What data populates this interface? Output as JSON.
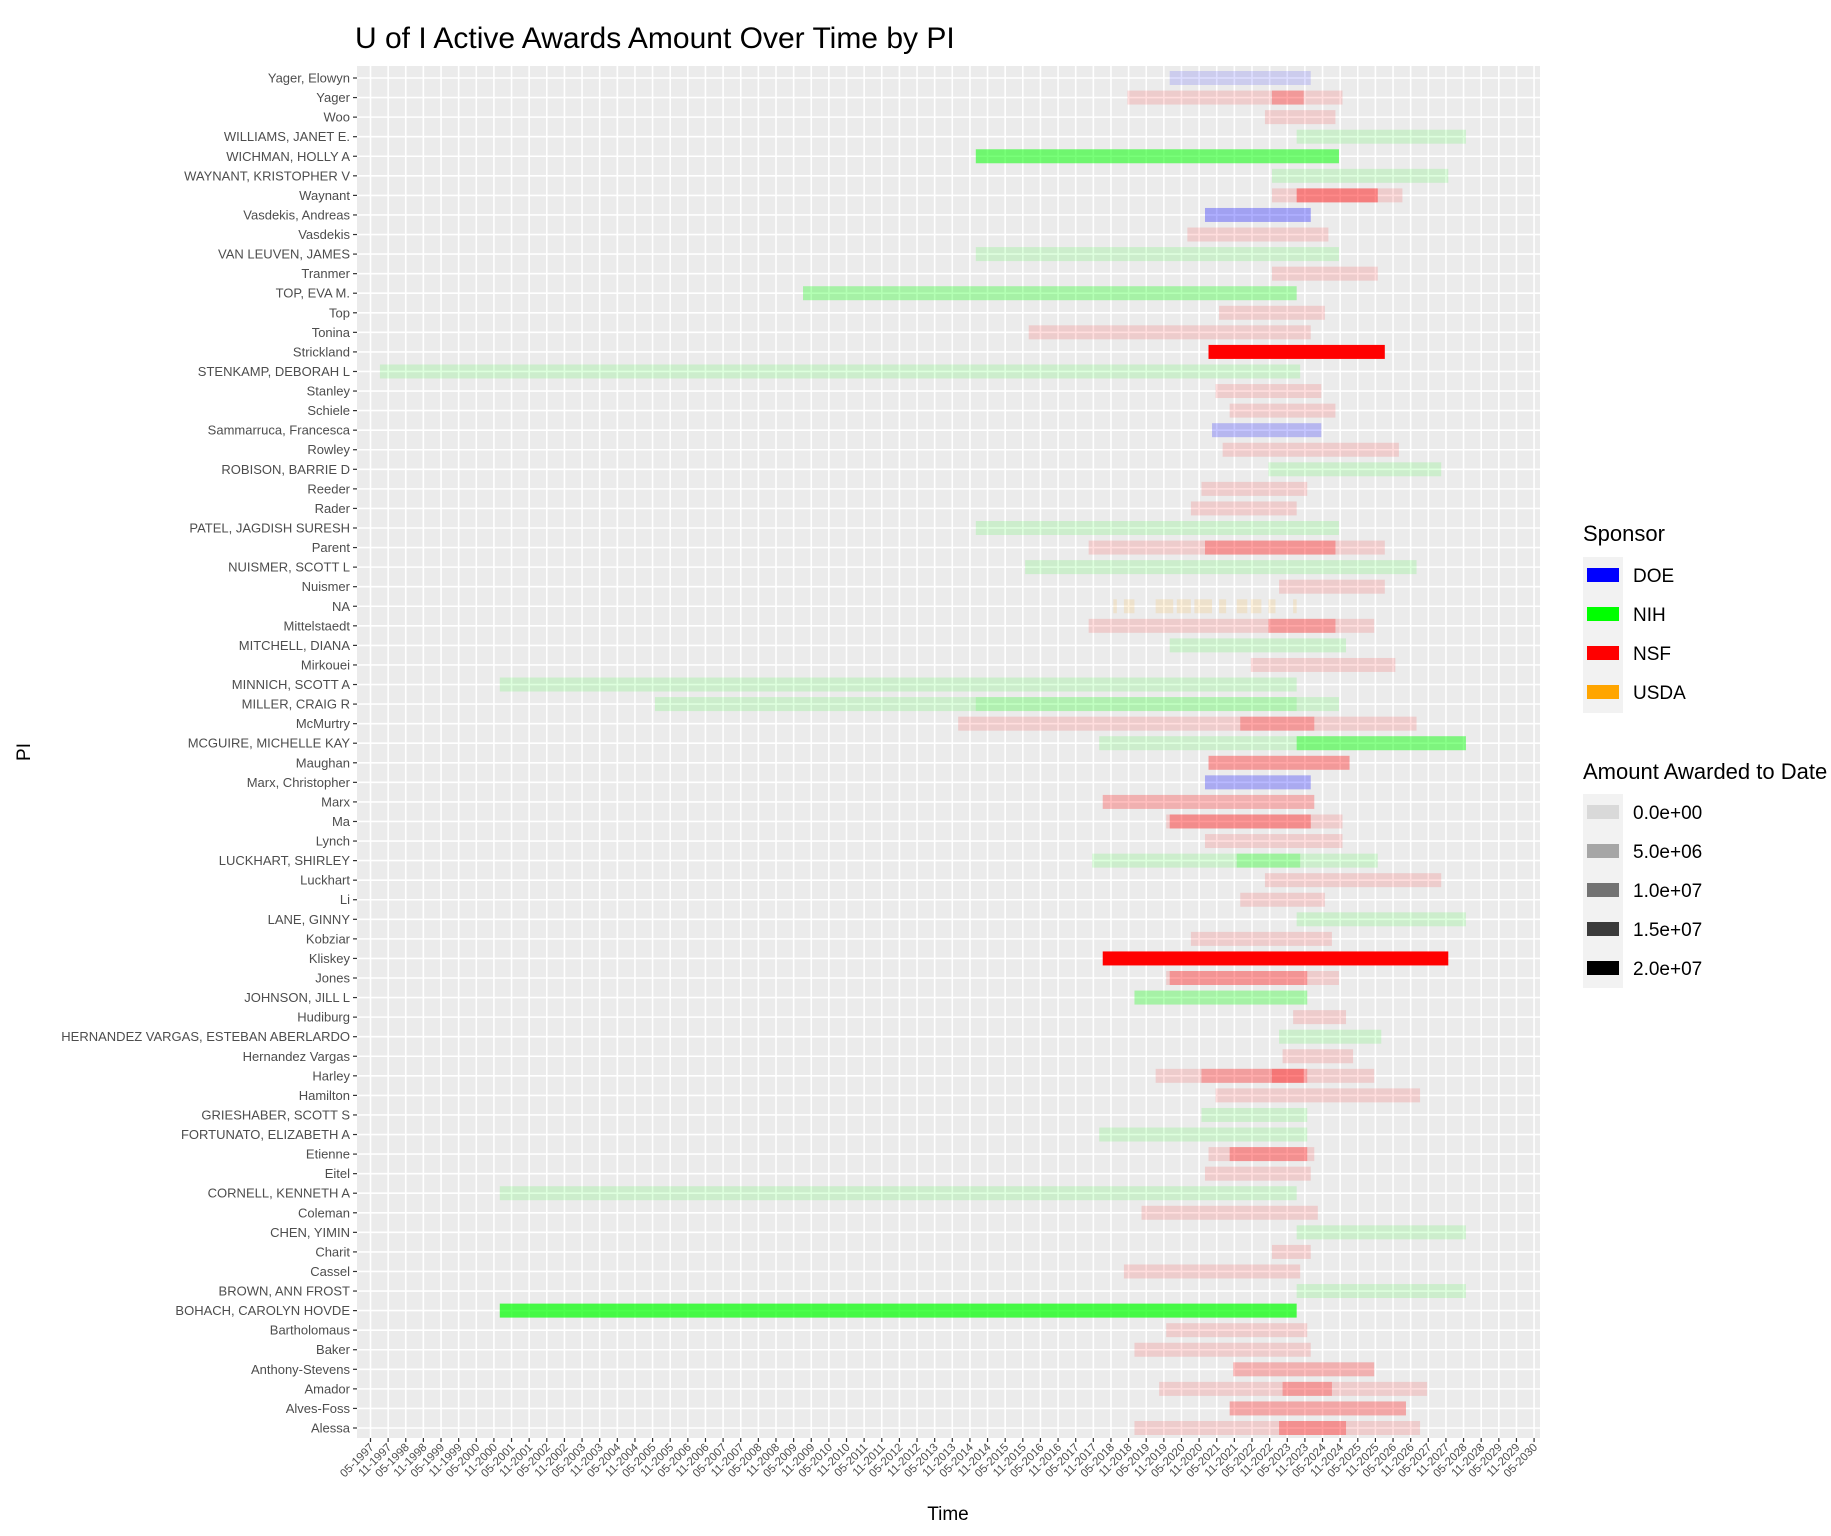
{
  "chart_data": {
    "type": "gantt",
    "title": "U of I Active Awards Amount Over Time by PI",
    "xlabel": "Time",
    "ylabel": "PI",
    "x_ticks": [
      "05-1997",
      "11-1997",
      "05-1998",
      "11-1998",
      "05-1999",
      "11-1999",
      "05-2000",
      "11-2000",
      "05-2001",
      "11-2001",
      "05-2002",
      "11-2002",
      "05-2003",
      "11-2003",
      "05-2004",
      "11-2004",
      "05-2005",
      "11-2005",
      "05-2006",
      "11-2006",
      "05-2007",
      "11-2007",
      "05-2008",
      "11-2008",
      "05-2009",
      "11-2009",
      "05-2010",
      "11-2010",
      "05-2011",
      "11-2011",
      "05-2012",
      "11-2012",
      "05-2013",
      "11-2013",
      "05-2014",
      "11-2014",
      "05-2015",
      "11-2015",
      "05-2016",
      "11-2016",
      "05-2017",
      "11-2017",
      "05-2018",
      "11-2018",
      "05-2019",
      "11-2019",
      "05-2020",
      "11-2020",
      "05-2021",
      "11-2021",
      "05-2022",
      "11-2022",
      "05-2023",
      "11-2023",
      "05-2024",
      "11-2024",
      "05-2025",
      "11-2025",
      "05-2026",
      "11-2026",
      "05-2027",
      "11-2027",
      "05-2028",
      "11-2028",
      "05-2029",
      "11-2029",
      "05-2030"
    ],
    "pi_categories": [
      "Yager, Elowyn",
      "Yager",
      "Woo",
      "WILLIAMS, JANET E.",
      "WICHMAN, HOLLY A",
      "WAYNANT, KRISTOPHER V",
      "Waynant",
      "Vasdekis, Andreas",
      "Vasdekis",
      "VAN LEUVEN, JAMES ",
      "Tranmer",
      "TOP, EVA M.",
      "Top",
      "Tonina",
      "Strickland",
      "STENKAMP, DEBORAH L",
      "Stanley",
      "Schiele",
      "Sammarruca, Francesca",
      "Rowley",
      "ROBISON, BARRIE D",
      "Reeder",
      "Rader",
      "PATEL, JAGDISH SURESH ",
      "Parent",
      "NUISMER, SCOTT L",
      "Nuismer",
      "NA",
      "Mittelstaedt",
      "MITCHELL, DIANA ",
      "Mirkouei",
      "MINNICH, SCOTT A",
      "MILLER, CRAIG R",
      "McMurtry",
      "MCGUIRE, MICHELLE KAY",
      "Maughan",
      "Marx, Christopher",
      "Marx",
      "Ma",
      "Lynch",
      "LUCKHART, SHIRLEY ",
      "Luckhart",
      "Li",
      "LANE, GINNY ",
      "Kobziar",
      "Kliskey",
      "Jones",
      "JOHNSON, JILL L",
      "Hudiburg",
      "HERNANDEZ VARGAS, ESTEBAN ABERLARDO",
      "Hernandez Vargas",
      "Harley",
      "Hamilton",
      "GRIESHABER, SCOTT S",
      "FORTUNATO, ELIZABETH A",
      "Etienne",
      "Eitel",
      "CORNELL, KENNETH A",
      "Coleman",
      "CHEN, YIMIN ",
      "Charit",
      "Cassel",
      "BROWN, ANN FROST",
      "BOHACH, CAROLYN HOVDE",
      "Bartholomaus",
      "Baker",
      "Anthony-Stevens",
      "Amador",
      "Alves-Foss",
      "Alessa"
    ],
    "sponsor_colors": {
      "DOE": "#0000ff",
      "NIH": "#00ff00",
      "NSF": "#ff0000",
      "USDA": "#ffa500"
    },
    "amount_range": [
      0,
      20000000
    ],
    "bars": [
      {
        "pi": "Yager, Elowyn",
        "s": "DOE",
        "start": 2020.0,
        "end": 2024.0,
        "amt": 0
      },
      {
        "pi": "Yager",
        "s": "NSF",
        "start": 2018.8,
        "end": 2024.9,
        "amt": 0
      },
      {
        "pi": "Yager",
        "s": "NSF",
        "start": 2022.9,
        "end": 2023.8,
        "amt": 300000
      },
      {
        "pi": "Woo",
        "s": "NSF",
        "start": 2022.7,
        "end": 2024.7,
        "amt": 0
      },
      {
        "pi": "WILLIAMS, JANET E.",
        "s": "NIH",
        "start": 2023.6,
        "end": 2028.4,
        "amt": 0
      },
      {
        "pi": "WICHMAN, HOLLY A",
        "s": "NIH",
        "start": 2014.5,
        "end": 2024.8,
        "amt": 2200000
      },
      {
        "pi": "WAYNANT, KRISTOPHER V",
        "s": "NIH",
        "start": 2022.9,
        "end": 2027.9,
        "amt": 0
      },
      {
        "pi": "Waynant",
        "s": "NSF",
        "start": 2022.9,
        "end": 2026.6,
        "amt": 0
      },
      {
        "pi": "Waynant",
        "s": "NSF",
        "start": 2023.6,
        "end": 2025.9,
        "amt": 1000000
      },
      {
        "pi": "Vasdekis, Andreas",
        "s": "DOE",
        "start": 2021.0,
        "end": 2024.0,
        "amt": 600000
      },
      {
        "pi": "Vasdekis",
        "s": "NSF",
        "start": 2020.5,
        "end": 2024.5,
        "amt": 0
      },
      {
        "pi": "VAN LEUVEN, JAMES ",
        "s": "NIH",
        "start": 2014.5,
        "end": 2024.8,
        "amt": 0
      },
      {
        "pi": "Tranmer",
        "s": "NSF",
        "start": 2022.9,
        "end": 2025.9,
        "amt": 0
      },
      {
        "pi": "TOP, EVA M.",
        "s": "NIH",
        "start": 2009.6,
        "end": 2023.6,
        "amt": 500000
      },
      {
        "pi": "Top",
        "s": "NSF",
        "start": 2021.4,
        "end": 2024.4,
        "amt": 0
      },
      {
        "pi": "Tonina",
        "s": "NSF",
        "start": 2016.0,
        "end": 2024.0,
        "amt": 0
      },
      {
        "pi": "Strickland",
        "s": "NSF",
        "start": 2021.1,
        "end": 2026.1,
        "amt": 8000000
      },
      {
        "pi": "STENKAMP, DEBORAH L",
        "s": "NIH",
        "start": 1997.6,
        "end": 2023.7,
        "amt": 0
      },
      {
        "pi": "Stanley",
        "s": "NSF",
        "start": 2021.3,
        "end": 2024.3,
        "amt": 0
      },
      {
        "pi": "Schiele",
        "s": "NSF",
        "start": 2021.7,
        "end": 2024.7,
        "amt": 0
      },
      {
        "pi": "Sammarruca, Francesca",
        "s": "DOE",
        "start": 2021.2,
        "end": 2024.3,
        "amt": 200000
      },
      {
        "pi": "Rowley",
        "s": "NSF",
        "start": 2021.5,
        "end": 2026.5,
        "amt": 0
      },
      {
        "pi": "ROBISON, BARRIE D",
        "s": "NIH",
        "start": 2022.8,
        "end": 2027.7,
        "amt": 0
      },
      {
        "pi": "Reeder",
        "s": "NSF",
        "start": 2020.9,
        "end": 2023.9,
        "amt": 0
      },
      {
        "pi": "Rader",
        "s": "NSF",
        "start": 2020.6,
        "end": 2023.6,
        "amt": 0
      },
      {
        "pi": "PATEL, JAGDISH SURESH ",
        "s": "NIH",
        "start": 2014.5,
        "end": 2024.8,
        "amt": 0
      },
      {
        "pi": "Parent",
        "s": "NSF",
        "start": 2017.7,
        "end": 2026.1,
        "amt": 0
      },
      {
        "pi": "Parent",
        "s": "NSF",
        "start": 2021.0,
        "end": 2024.7,
        "amt": 400000
      },
      {
        "pi": "NUISMER, SCOTT L",
        "s": "NIH",
        "start": 2015.9,
        "end": 2027.0,
        "amt": 0
      },
      {
        "pi": "Nuismer",
        "s": "NSF",
        "start": 2023.1,
        "end": 2026.1,
        "amt": 0
      },
      {
        "pi": "NA",
        "s": "USDA",
        "start": 2018.4,
        "end": 2018.5,
        "amt": 0
      },
      {
        "pi": "NA",
        "s": "USDA",
        "start": 2018.7,
        "end": 2019.0,
        "amt": 0
      },
      {
        "pi": "NA",
        "s": "USDA",
        "start": 2019.6,
        "end": 2020.1,
        "amt": 0
      },
      {
        "pi": "NA",
        "s": "USDA",
        "start": 2020.2,
        "end": 2020.6,
        "amt": 0
      },
      {
        "pi": "NA",
        "s": "USDA",
        "start": 2020.7,
        "end": 2021.2,
        "amt": 0
      },
      {
        "pi": "NA",
        "s": "USDA",
        "start": 2021.4,
        "end": 2021.6,
        "amt": 0
      },
      {
        "pi": "NA",
        "s": "USDA",
        "start": 2021.9,
        "end": 2022.2,
        "amt": 0
      },
      {
        "pi": "NA",
        "s": "USDA",
        "start": 2022.3,
        "end": 2022.6,
        "amt": 0
      },
      {
        "pi": "NA",
        "s": "USDA",
        "start": 2022.8,
        "end": 2023.0,
        "amt": 0
      },
      {
        "pi": "NA",
        "s": "USDA",
        "start": 2023.5,
        "end": 2023.6,
        "amt": 0
      },
      {
        "pi": "Mittelstaedt",
        "s": "NSF",
        "start": 2017.7,
        "end": 2025.8,
        "amt": 0
      },
      {
        "pi": "Mittelstaedt",
        "s": "NSF",
        "start": 2022.8,
        "end": 2024.7,
        "amt": 300000
      },
      {
        "pi": "MITCHELL, DIANA ",
        "s": "NIH",
        "start": 2020.0,
        "end": 2025.0,
        "amt": 0
      },
      {
        "pi": "Mirkouei",
        "s": "NSF",
        "start": 2022.3,
        "end": 2026.4,
        "amt": 0
      },
      {
        "pi": "MINNICH, SCOTT A",
        "s": "NIH",
        "start": 2001.0,
        "end": 2023.6,
        "amt": 0
      },
      {
        "pi": "MILLER, CRAIG R",
        "s": "NIH",
        "start": 2005.4,
        "end": 2024.8,
        "amt": 0
      },
      {
        "pi": "MILLER, CRAIG R",
        "s": "NIH",
        "start": 2014.5,
        "end": 2023.6,
        "amt": 0
      },
      {
        "pi": "McMurtry",
        "s": "NSF",
        "start": 2014.0,
        "end": 2027.0,
        "amt": 0
      },
      {
        "pi": "McMurtry",
        "s": "NSF",
        "start": 2022.0,
        "end": 2024.1,
        "amt": 300000
      },
      {
        "pi": "MCGUIRE, MICHELLE KAY",
        "s": "NIH",
        "start": 2018.0,
        "end": 2028.4,
        "amt": 0
      },
      {
        "pi": "MCGUIRE, MICHELLE KAY",
        "s": "NIH",
        "start": 2023.6,
        "end": 2028.4,
        "amt": 1000000
      },
      {
        "pi": "Maughan",
        "s": "NSF",
        "start": 2021.1,
        "end": 2025.1,
        "amt": 800000
      },
      {
        "pi": "Marx, Christopher",
        "s": "DOE",
        "start": 2021.0,
        "end": 2024.0,
        "amt": 400000
      },
      {
        "pi": "Marx",
        "s": "NSF",
        "start": 2018.1,
        "end": 2024.1,
        "amt": 300000
      },
      {
        "pi": "Ma",
        "s": "NSF",
        "start": 2019.9,
        "end": 2024.9,
        "amt": 0
      },
      {
        "pi": "Ma",
        "s": "NSF",
        "start": 2020.0,
        "end": 2024.0,
        "amt": 600000
      },
      {
        "pi": "Lynch",
        "s": "NSF",
        "start": 2021.0,
        "end": 2024.9,
        "amt": 0
      },
      {
        "pi": "LUCKHART, SHIRLEY ",
        "s": "NIH",
        "start": 2017.8,
        "end": 2025.9,
        "amt": 0
      },
      {
        "pi": "LUCKHART, SHIRLEY ",
        "s": "NIH",
        "start": 2021.9,
        "end": 2023.7,
        "amt": 200000
      },
      {
        "pi": "Luckhart",
        "s": "NSF",
        "start": 2022.7,
        "end": 2027.7,
        "amt": 0
      },
      {
        "pi": "Li",
        "s": "NSF",
        "start": 2022.0,
        "end": 2024.4,
        "amt": 0
      },
      {
        "pi": "LANE, GINNY ",
        "s": "NIH",
        "start": 2023.6,
        "end": 2028.4,
        "amt": 0
      },
      {
        "pi": "Kobziar",
        "s": "NSF",
        "start": 2020.6,
        "end": 2024.6,
        "amt": 0
      },
      {
        "pi": "Kliskey",
        "s": "NSF",
        "start": 2018.1,
        "end": 2027.9,
        "amt": 10000000
      },
      {
        "pi": "Jones",
        "s": "NSF",
        "start": 2019.9,
        "end": 2024.8,
        "amt": 0
      },
      {
        "pi": "Jones",
        "s": "NSF",
        "start": 2020.0,
        "end": 2023.9,
        "amt": 400000
      },
      {
        "pi": "JOHNSON, JILL L",
        "s": "NIH",
        "start": 2019.0,
        "end": 2023.9,
        "amt": 500000
      },
      {
        "pi": "Hudiburg",
        "s": "NSF",
        "start": 2023.5,
        "end": 2025.0,
        "amt": 0
      },
      {
        "pi": "HERNANDEZ VARGAS, ESTEBAN ABERLARDO",
        "s": "NIH",
        "start": 2023.1,
        "end": 2026.0,
        "amt": 0
      },
      {
        "pi": "Hernandez Vargas",
        "s": "NSF",
        "start": 2023.2,
        "end": 2025.2,
        "amt": 0
      },
      {
        "pi": "Harley",
        "s": "NSF",
        "start": 2019.6,
        "end": 2025.8,
        "amt": 0
      },
      {
        "pi": "Harley",
        "s": "NSF",
        "start": 2020.9,
        "end": 2023.9,
        "amt": 200000
      },
      {
        "pi": "Harley",
        "s": "NSF",
        "start": 2022.9,
        "end": 2023.8,
        "amt": 300000
      },
      {
        "pi": "Hamilton",
        "s": "NSF",
        "start": 2021.3,
        "end": 2027.1,
        "amt": 0
      },
      {
        "pi": "GRIESHABER, SCOTT S",
        "s": "NIH",
        "start": 2020.9,
        "end": 2023.9,
        "amt": 0
      },
      {
        "pi": "FORTUNATO, ELIZABETH A",
        "s": "NIH",
        "start": 2018.0,
        "end": 2023.9,
        "amt": 0
      },
      {
        "pi": "Etienne",
        "s": "NSF",
        "start": 2021.1,
        "end": 2024.1,
        "amt": 0
      },
      {
        "pi": "Etienne",
        "s": "NSF",
        "start": 2021.7,
        "end": 2023.9,
        "amt": 500000
      },
      {
        "pi": "Eitel",
        "s": "NSF",
        "start": 2021.0,
        "end": 2024.0,
        "amt": 0
      },
      {
        "pi": "CORNELL, KENNETH A",
        "s": "NIH",
        "start": 2001.0,
        "end": 2023.6,
        "amt": 0
      },
      {
        "pi": "Coleman",
        "s": "NSF",
        "start": 2019.2,
        "end": 2024.2,
        "amt": 0
      },
      {
        "pi": "CHEN, YIMIN ",
        "s": "NIH",
        "start": 2023.6,
        "end": 2028.4,
        "amt": 0
      },
      {
        "pi": "Charit",
        "s": "NSF",
        "start": 2022.9,
        "end": 2024.0,
        "amt": 0
      },
      {
        "pi": "Cassel",
        "s": "NSF",
        "start": 2018.7,
        "end": 2023.7,
        "amt": 0
      },
      {
        "pi": "BROWN, ANN FROST",
        "s": "NIH",
        "start": 2023.6,
        "end": 2028.4,
        "amt": 0
      },
      {
        "pi": "BOHACH, CAROLYN HOVDE",
        "s": "NIH",
        "start": 2001.0,
        "end": 2023.6,
        "amt": 4000000
      },
      {
        "pi": "Bartholomaus",
        "s": "NSF",
        "start": 2019.9,
        "end": 2023.9,
        "amt": 0
      },
      {
        "pi": "Baker",
        "s": "NSF",
        "start": 2019.0,
        "end": 2024.0,
        "amt": 0
      },
      {
        "pi": "Anthony-Stevens",
        "s": "NSF",
        "start": 2021.8,
        "end": 2025.8,
        "amt": 300000
      },
      {
        "pi": "Amador",
        "s": "NSF",
        "start": 2019.7,
        "end": 2027.3,
        "amt": 0
      },
      {
        "pi": "Amador",
        "s": "NSF",
        "start": 2023.2,
        "end": 2024.6,
        "amt": 300000
      },
      {
        "pi": "Alves-Foss",
        "s": "NSF",
        "start": 2021.7,
        "end": 2026.7,
        "amt": 500000
      },
      {
        "pi": "Alessa",
        "s": "NSF",
        "start": 2019.0,
        "end": 2027.1,
        "amt": 0
      },
      {
        "pi": "Alessa",
        "s": "NSF",
        "start": 2023.1,
        "end": 2025.0,
        "amt": 500000
      }
    ],
    "legend_sponsor": {
      "title": "Sponsor",
      "items": [
        {
          "label": "DOE",
          "color": "#0000ff"
        },
        {
          "label": "NIH",
          "color": "#00ff00"
        },
        {
          "label": "NSF",
          "color": "#ff0000"
        },
        {
          "label": "USDA",
          "color": "#ffa500"
        }
      ]
    },
    "legend_amount": {
      "title": "Amount Awarded to Date",
      "items": [
        {
          "label": "0.0e+00",
          "color": "#d9d9d9"
        },
        {
          "label": "5.0e+06",
          "color": "#a6a6a6"
        },
        {
          "label": "1.0e+07",
          "color": "#737373"
        },
        {
          "label": "1.5e+07",
          "color": "#3b3b3b"
        },
        {
          "label": "2.0e+07",
          "color": "#000000"
        }
      ]
    },
    "x_range": [
      1997.1,
      2030.7
    ],
    "grid": true,
    "legend_position": "right"
  }
}
